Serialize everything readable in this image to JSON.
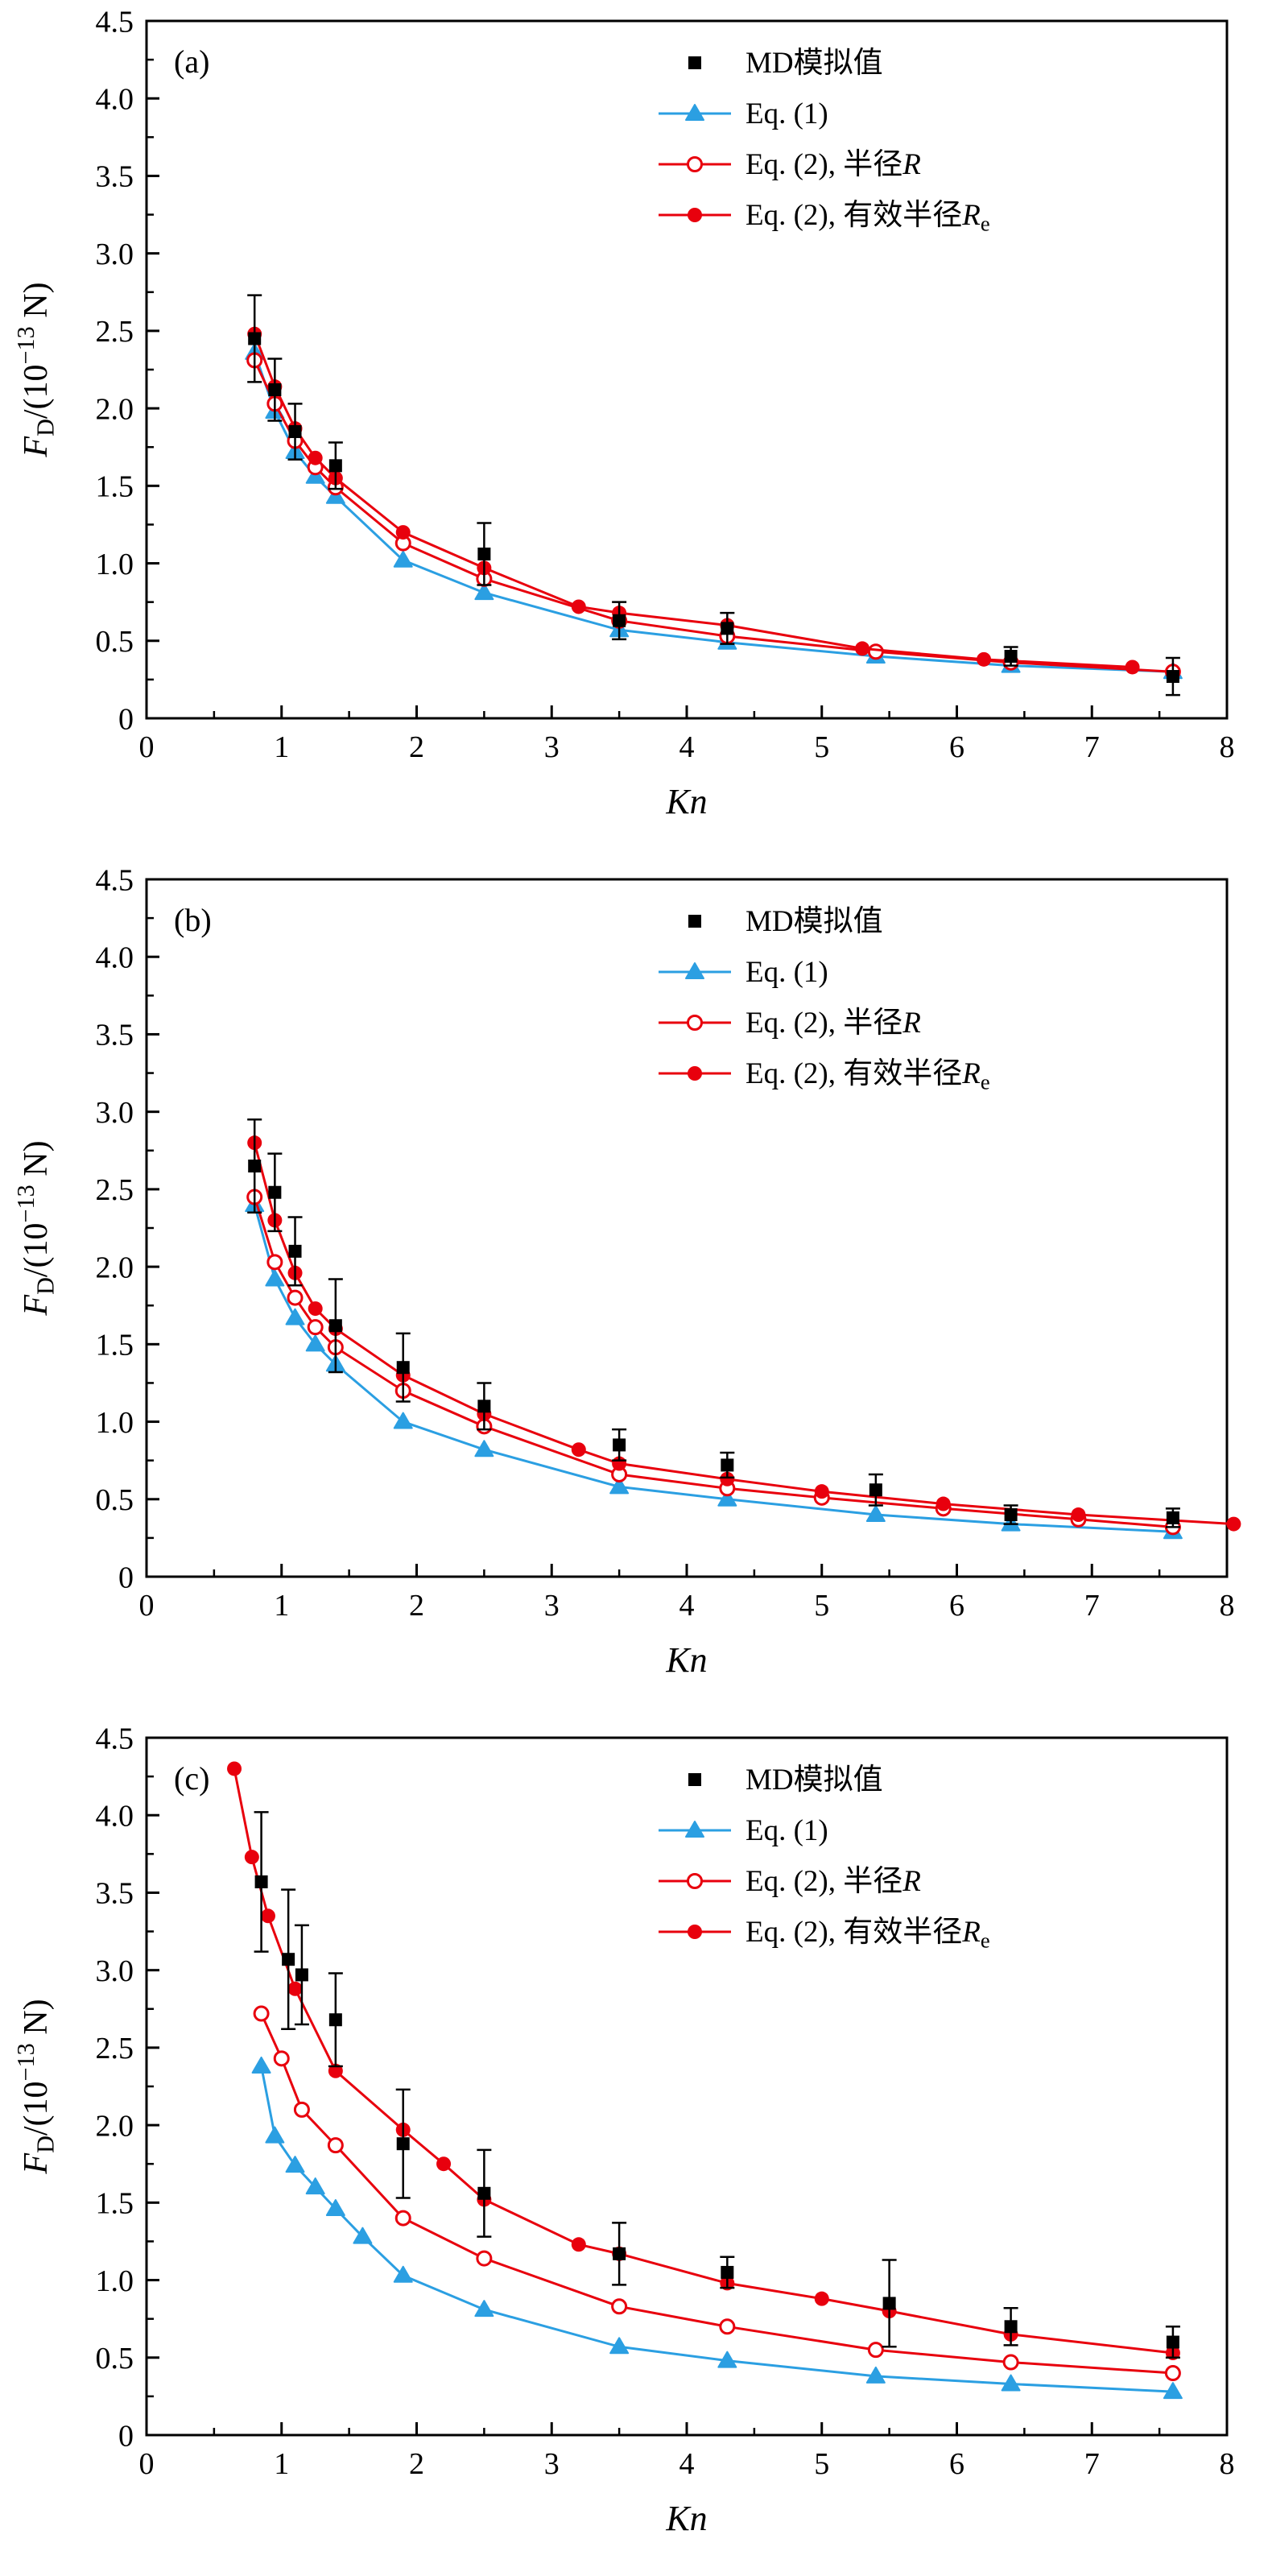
{
  "page": {
    "background": "#ffffff"
  },
  "colors": {
    "black": "#000000",
    "blue": "#2B9FE2",
    "red": "#E8000D",
    "white": "#ffffff"
  },
  "axis": {
    "xlabel": "Kn",
    "ylabel_text": "F_D/(10^-13 N)",
    "ylabel_parts": [
      {
        "text": "F",
        "style": "italic"
      },
      {
        "text": "D",
        "style": "sub"
      },
      {
        "text": "/(10",
        "style": "normal"
      },
      {
        "text": "−13",
        "style": "sup"
      },
      {
        "text": " N)",
        "style": "normal"
      }
    ],
    "xlim": [
      0,
      8
    ],
    "ylim": [
      0,
      4.5
    ],
    "xticks": [
      0,
      1,
      2,
      3,
      4,
      5,
      6,
      7,
      8
    ],
    "xtick_labels": [
      "0",
      "1",
      "2",
      "3",
      "4",
      "5",
      "6",
      "7",
      "8"
    ],
    "yticks": [
      0,
      0.5,
      1,
      1.5,
      2,
      2.5,
      3,
      3.5,
      4,
      4.5
    ],
    "ytick_labels": [
      "0",
      "0.5",
      "1.0",
      "1.5",
      "2.0",
      "2.5",
      "3.0",
      "3.5",
      "4.0",
      "4.5"
    ],
    "x_minor_step": 0.5,
    "y_minor_step": 0.25,
    "grid": false
  },
  "legend": [
    {
      "series": "md",
      "parts": [
        {
          "text": "MD模拟值"
        }
      ]
    },
    {
      "series": "eq1",
      "parts": [
        {
          "text": "Eq. (1)"
        }
      ]
    },
    {
      "series": "eq2r",
      "parts": [
        {
          "text": "Eq. (2), 半径"
        },
        {
          "text": "R",
          "style": "italic"
        }
      ]
    },
    {
      "series": "eq2re",
      "parts": [
        {
          "text": "Eq. (2), 有效半径"
        },
        {
          "text": "R",
          "style": "italic"
        },
        {
          "text": "e",
          "style": "sub"
        }
      ]
    }
  ],
  "series_styles": {
    "md": {
      "marker": "square",
      "color": "#000000",
      "line": false
    },
    "eq1": {
      "marker": "triangle",
      "color": "#2B9FE2",
      "line": true
    },
    "eq2r": {
      "marker": "circle-open",
      "color": "#E8000D",
      "line": true
    },
    "eq2re": {
      "marker": "circle",
      "color": "#E8000D",
      "line": true
    }
  },
  "chart_data": [
    {
      "type": "line",
      "panel_label": "(a)",
      "title": "",
      "xlabel": "Kn",
      "ylabel": "F_D/(10^-13 N)",
      "xlim": [
        0,
        8
      ],
      "ylim": [
        0,
        4.5
      ],
      "legend_position": "top-right",
      "series": [
        {
          "key": "md",
          "name": "MD模拟值",
          "x": [
            0.8,
            0.95,
            1.1,
            1.4,
            2.5,
            3.5,
            4.3,
            6.4,
            7.6
          ],
          "y": [
            2.45,
            2.12,
            1.85,
            1.63,
            1.06,
            0.63,
            0.58,
            0.4,
            0.27
          ],
          "yerr": [
            0.28,
            0.2,
            0.18,
            0.15,
            0.2,
            0.12,
            0.1,
            0.06,
            0.12
          ]
        },
        {
          "key": "eq1",
          "name": "Eq. (1)",
          "x": [
            0.8,
            0.95,
            1.1,
            1.25,
            1.4,
            1.9,
            2.5,
            3.5,
            4.3,
            5.4,
            6.4,
            7.6
          ],
          "y": [
            2.36,
            1.98,
            1.72,
            1.56,
            1.43,
            1.02,
            0.81,
            0.57,
            0.49,
            0.4,
            0.34,
            0.3
          ]
        },
        {
          "key": "eq2r",
          "name": "Eq. (2), 半径R",
          "x": [
            0.8,
            0.95,
            1.1,
            1.25,
            1.4,
            1.9,
            2.5,
            3.5,
            4.3,
            5.4,
            6.4,
            7.6
          ],
          "y": [
            2.31,
            2.03,
            1.79,
            1.62,
            1.49,
            1.13,
            0.9,
            0.63,
            0.53,
            0.43,
            0.36,
            0.3
          ]
        },
        {
          "key": "eq2re",
          "name": "Eq. (2), 有效半径Re",
          "x": [
            0.8,
            0.95,
            1.1,
            1.25,
            1.4,
            1.9,
            2.5,
            3.2,
            3.5,
            4.3,
            5.3,
            6.2,
            7.3
          ],
          "y": [
            2.48,
            2.14,
            1.87,
            1.68,
            1.55,
            1.2,
            0.97,
            0.72,
            0.68,
            0.6,
            0.45,
            0.38,
            0.33
          ]
        }
      ]
    },
    {
      "type": "line",
      "panel_label": "(b)",
      "title": "",
      "xlabel": "Kn",
      "ylabel": "F_D/(10^-13 N)",
      "xlim": [
        0,
        8
      ],
      "ylim": [
        0,
        4.5
      ],
      "legend_position": "top-right",
      "series": [
        {
          "key": "md",
          "name": "MD模拟值",
          "x": [
            0.8,
            0.95,
            1.1,
            1.4,
            1.9,
            2.5,
            3.5,
            4.3,
            5.4,
            6.4,
            7.6
          ],
          "y": [
            2.65,
            2.48,
            2.1,
            1.62,
            1.35,
            1.1,
            0.85,
            0.72,
            0.56,
            0.4,
            0.38
          ],
          "yerr": [
            0.3,
            0.25,
            0.22,
            0.3,
            0.22,
            0.15,
            0.1,
            0.08,
            0.1,
            0.06,
            0.06
          ]
        },
        {
          "key": "eq1",
          "name": "Eq. (1)",
          "x": [
            0.8,
            0.95,
            1.1,
            1.25,
            1.4,
            1.9,
            2.5,
            3.5,
            4.3,
            5.4,
            6.4,
            7.6
          ],
          "y": [
            2.4,
            1.92,
            1.67,
            1.5,
            1.37,
            1.0,
            0.82,
            0.58,
            0.5,
            0.4,
            0.34,
            0.29
          ]
        },
        {
          "key": "eq2r",
          "name": "Eq. (2), 半径R",
          "x": [
            0.8,
            0.95,
            1.1,
            1.25,
            1.4,
            1.9,
            2.5,
            3.5,
            4.3,
            5.0,
            5.9,
            6.9,
            7.6
          ],
          "y": [
            2.45,
            2.03,
            1.8,
            1.61,
            1.48,
            1.2,
            0.97,
            0.66,
            0.57,
            0.51,
            0.44,
            0.37,
            0.32
          ]
        },
        {
          "key": "eq2re",
          "name": "Eq. (2), 有效半径Re",
          "x": [
            0.8,
            0.95,
            1.1,
            1.25,
            1.4,
            1.9,
            2.5,
            3.2,
            3.5,
            4.3,
            5.0,
            5.9,
            6.9,
            8.05
          ],
          "y": [
            2.8,
            2.3,
            1.96,
            1.73,
            1.6,
            1.3,
            1.05,
            0.82,
            0.73,
            0.63,
            0.55,
            0.47,
            0.4,
            0.34
          ]
        }
      ]
    },
    {
      "type": "line",
      "panel_label": "(c)",
      "title": "",
      "xlabel": "Kn",
      "ylabel": "F_D/(10^-13 N)",
      "xlim": [
        0,
        8
      ],
      "ylim": [
        0,
        4.5
      ],
      "legend_position": "top-right",
      "series": [
        {
          "key": "md",
          "name": "MD模拟值",
          "x": [
            0.85,
            1.05,
            1.15,
            1.4,
            1.9,
            2.5,
            3.5,
            4.3,
            5.5,
            6.4,
            7.6
          ],
          "y": [
            3.57,
            3.07,
            2.97,
            2.68,
            1.88,
            1.56,
            1.17,
            1.05,
            0.85,
            0.7,
            0.6
          ],
          "yerr": [
            0.45,
            0.45,
            0.32,
            0.3,
            0.35,
            0.28,
            0.2,
            0.1,
            0.28,
            0.12,
            0.1
          ]
        },
        {
          "key": "eq1",
          "name": "Eq. (1)",
          "x": [
            0.85,
            0.95,
            1.1,
            1.25,
            1.4,
            1.6,
            1.9,
            2.5,
            3.5,
            4.3,
            5.4,
            6.4,
            7.6
          ],
          "y": [
            2.38,
            1.93,
            1.74,
            1.6,
            1.46,
            1.28,
            1.03,
            0.81,
            0.57,
            0.48,
            0.38,
            0.33,
            0.28
          ]
        },
        {
          "key": "eq2r",
          "name": "Eq. (2), 半径R",
          "x": [
            0.85,
            1.0,
            1.15,
            1.4,
            1.9,
            2.5,
            3.5,
            4.3,
            5.4,
            6.4,
            7.6
          ],
          "y": [
            2.72,
            2.43,
            2.1,
            1.87,
            1.4,
            1.14,
            0.83,
            0.7,
            0.55,
            0.47,
            0.4
          ]
        },
        {
          "key": "eq2re",
          "name": "Eq. (2), 有效半径Re",
          "x": [
            0.65,
            0.78,
            0.9,
            1.1,
            1.4,
            1.9,
            2.2,
            2.5,
            3.2,
            3.5,
            4.3,
            5.0,
            5.5,
            6.4,
            7.6
          ],
          "y": [
            4.3,
            3.73,
            3.35,
            2.88,
            2.35,
            1.97,
            1.75,
            1.52,
            1.23,
            1.17,
            0.98,
            0.88,
            0.8,
            0.65,
            0.53
          ]
        }
      ]
    }
  ]
}
